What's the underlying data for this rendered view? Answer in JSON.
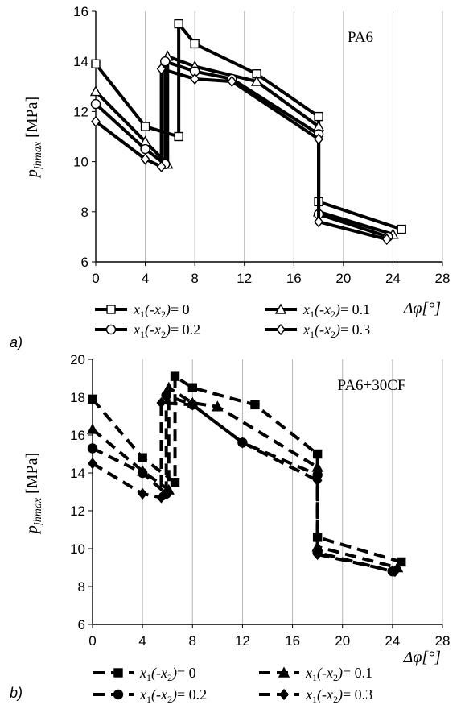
{
  "chart_data": [
    {
      "panel": "a)",
      "type": "line",
      "title": "PA6",
      "ylabel": "p_jhmax [MPa]",
      "ylabel_main": "p",
      "ylabel_sub": "jhmax",
      "ylabel_unit": " [MPa]",
      "xlabel": "Δφ[°]",
      "xlim": [
        0,
        28
      ],
      "ylim": [
        6,
        16
      ],
      "xticks": [
        0,
        4,
        8,
        12,
        16,
        20,
        24,
        28
      ],
      "yticks": [
        6,
        8,
        10,
        12,
        14,
        16
      ],
      "grid": "vertical",
      "line_style": "solid",
      "series": [
        {
          "name": "x1(-x2) = 0",
          "legend_tail": "= 0",
          "marker": "square-open",
          "x": [
            0,
            4,
            6.7,
            6.7,
            8,
            13,
            18,
            18,
            24.7
          ],
          "y": [
            13.9,
            11.4,
            11.0,
            15.5,
            14.7,
            13.5,
            11.8,
            8.4,
            7.3
          ]
        },
        {
          "name": "x1(-x2) = 0.1",
          "legend_tail": "= 0.1",
          "marker": "triangle-open",
          "x": [
            0,
            4,
            5.8,
            5.8,
            8,
            13,
            18,
            18,
            24
          ],
          "y": [
            12.8,
            10.8,
            9.9,
            14.2,
            13.8,
            13.2,
            11.4,
            8.0,
            7.1
          ]
        },
        {
          "name": "x1(-x2) = 0.2",
          "legend_tail": "= 0.2",
          "marker": "circle-open",
          "x": [
            0,
            4,
            5.6,
            5.6,
            8,
            11,
            18,
            18,
            23.6
          ],
          "y": [
            12.3,
            10.5,
            9.9,
            14.0,
            13.6,
            13.3,
            11.1,
            7.9,
            7.0
          ]
        },
        {
          "name": "x1(-x2) = 0.3",
          "legend_tail": "= 0.3",
          "marker": "diamond-open",
          "x": [
            0,
            4,
            5.3,
            5.3,
            8,
            11,
            18,
            18,
            23.5
          ],
          "y": [
            11.6,
            10.1,
            9.8,
            13.7,
            13.3,
            13.2,
            10.9,
            7.6,
            6.9
          ]
        }
      ]
    },
    {
      "panel": "b)",
      "type": "line",
      "title": "PA6+30CF",
      "ylabel": "p_jhmax [MPa]",
      "ylabel_main": "p",
      "ylabel_sub": "jhmax",
      "ylabel_unit": " [MPa]",
      "xlabel": "Δφ[°]",
      "xlim": [
        0,
        28
      ],
      "ylim": [
        6,
        20
      ],
      "xticks": [
        0,
        4,
        8,
        12,
        16,
        20,
        24,
        28
      ],
      "yticks": [
        6,
        8,
        10,
        12,
        14,
        16,
        18,
        20
      ],
      "grid": "vertical",
      "line_style": "dashed",
      "series": [
        {
          "name": "x1(-x2) = 0",
          "legend_tail": "= 0",
          "marker": "square-filled",
          "x": [
            0,
            4,
            6.6,
            6.6,
            8,
            13,
            18,
            18,
            24.7
          ],
          "y": [
            17.9,
            14.8,
            13.5,
            19.1,
            18.5,
            17.6,
            15.0,
            10.6,
            9.3
          ]
        },
        {
          "name": "x1(-x2) = 0.1",
          "legend_tail": "= 0.1",
          "marker": "triangle-filled",
          "x": [
            0,
            4,
            6.1,
            6.1,
            8,
            10,
            18,
            18,
            24.4
          ],
          "y": [
            16.3,
            14.1,
            13.1,
            18.5,
            17.7,
            17.5,
            14.3,
            10.1,
            9.0
          ]
        },
        {
          "name": "x1(-x2) = 0.2",
          "legend_tail": "= 0.2",
          "marker": "circle-filled",
          "x": [
            0,
            4,
            5.9,
            5.9,
            8,
            12,
            18,
            18,
            24
          ],
          "y": [
            15.3,
            14.0,
            12.9,
            18.1,
            17.6,
            15.6,
            13.9,
            9.8,
            8.8
          ]
        },
        {
          "name": "x1(-x2) = 0.3",
          "legend_tail": "= 0.3",
          "marker": "diamond-filled",
          "x": [
            0,
            4,
            5.5,
            5.5,
            8,
            12,
            18,
            18,
            24.2
          ],
          "y": [
            14.5,
            12.9,
            12.7,
            17.7,
            17.6,
            15.6,
            13.6,
            9.7,
            8.8
          ]
        }
      ]
    }
  ]
}
